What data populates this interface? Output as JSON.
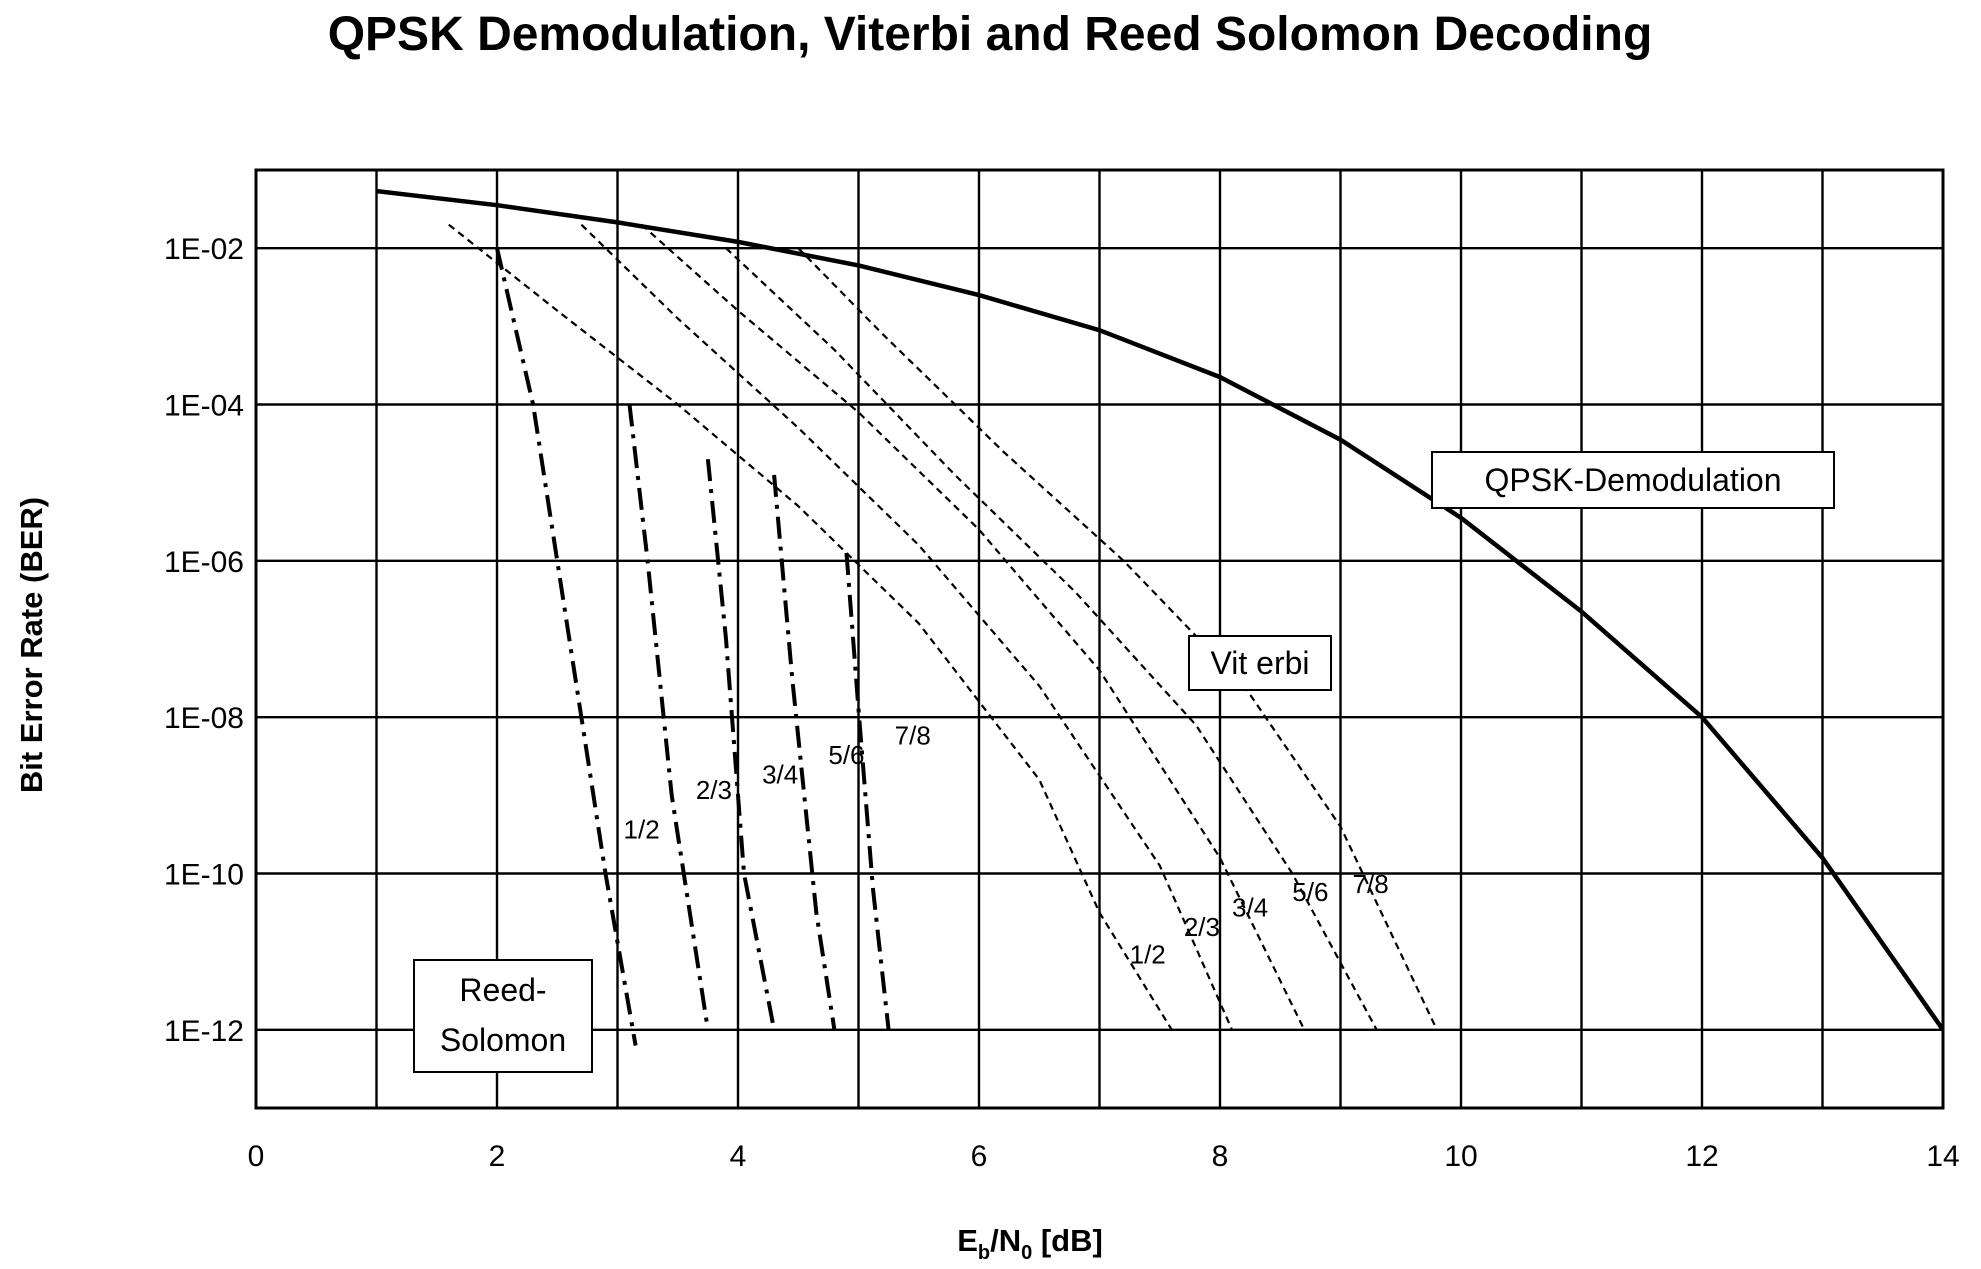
{
  "chart_data": {
    "type": "line",
    "title": "QPSK Demodulation, Viterbi and Reed Solomon Decoding",
    "xlabel_main": "E",
    "xlabel_sub_b": "b",
    "xlabel_slash": "/N",
    "xlabel_sub_0": "0",
    "xlabel_unit": " [dB]",
    "ylabel": "Bit Error Rate (BER)",
    "xlim": [
      0,
      14
    ],
    "ylim_exponent": [
      -13,
      -1
    ],
    "y_scale": "log",
    "grid": true,
    "x_ticks": [
      {
        "value": 0,
        "label": "0"
      },
      {
        "value": 2,
        "label": "2"
      },
      {
        "value": 4,
        "label": "4"
      },
      {
        "value": 6,
        "label": "6"
      },
      {
        "value": 8,
        "label": "8"
      },
      {
        "value": 10,
        "label": "10"
      },
      {
        "value": 12,
        "label": "12"
      },
      {
        "value": 14,
        "label": "14"
      }
    ],
    "y_ticks": [
      {
        "exp": -2,
        "label": "1E-02"
      },
      {
        "exp": -4,
        "label": "1E-04"
      },
      {
        "exp": -6,
        "label": "1E-06"
      },
      {
        "exp": -8,
        "label": "1E-08"
      },
      {
        "exp": -10,
        "label": "1E-10"
      },
      {
        "exp": -12,
        "label": "1E-12"
      }
    ],
    "annotations": {
      "qpsk": "QPSK-Demodulation",
      "viterbi": "Vit erbi",
      "reed_line1": "Reed-",
      "reed_line2": "Solomon"
    },
    "qpsk_series": {
      "name": "QPSK-Demodulation",
      "x": [
        1,
        2,
        3,
        4,
        5,
        6,
        7,
        8,
        9,
        10,
        11,
        12,
        13,
        14
      ],
      "log10_y": [
        -1.27,
        -1.45,
        -1.67,
        -1.92,
        -2.22,
        -2.6,
        -3.05,
        -3.65,
        -4.45,
        -5.45,
        -6.65,
        -8.0,
        -9.8,
        -12.0
      ]
    },
    "viterbi_series": [
      {
        "name": "1/2",
        "x": [
          1.6,
          2.5,
          3.5,
          4.5,
          5.5,
          6.5,
          7.0,
          7.6
        ],
        "log10_y": [
          -1.7,
          -2.8,
          -4.0,
          -5.3,
          -6.8,
          -8.8,
          -10.5,
          -12.0
        ]
      },
      {
        "name": "2/3",
        "x": [
          2.7,
          3.5,
          4.5,
          5.5,
          6.5,
          7.5,
          8.1
        ],
        "log10_y": [
          -1.7,
          -2.9,
          -4.3,
          -5.8,
          -7.6,
          -9.9,
          -12.0
        ]
      },
      {
        "name": "3/4",
        "x": [
          3.2,
          4.0,
          5.0,
          6.0,
          7.0,
          8.0,
          8.7
        ],
        "log10_y": [
          -1.7,
          -2.8,
          -4.1,
          -5.6,
          -7.4,
          -9.8,
          -12.0
        ]
      },
      {
        "name": "5/6",
        "x": [
          3.9,
          4.8,
          5.8,
          6.8,
          7.8,
          8.6,
          9.3
        ],
        "log10_y": [
          -2.0,
          -3.3,
          -4.9,
          -6.4,
          -8.1,
          -10.0,
          -12.0
        ]
      },
      {
        "name": "7/8",
        "x": [
          4.5,
          5.2,
          6.2,
          7.2,
          8.2,
          9.0,
          9.8
        ],
        "log10_y": [
          -2.0,
          -3.1,
          -4.6,
          -6.0,
          -7.6,
          -9.4,
          -12.0
        ]
      }
    ],
    "reed_solomon_series": [
      {
        "name": "1/2",
        "x": [
          2.0,
          2.3,
          2.6,
          2.9,
          3.15
        ],
        "log10_y": [
          -2.0,
          -4.0,
          -7.0,
          -10.0,
          -12.2
        ]
      },
      {
        "name": "2/3",
        "x": [
          3.1,
          3.25,
          3.45,
          3.75
        ],
        "log10_y": [
          -4.0,
          -6.0,
          -9.0,
          -12.0
        ]
      },
      {
        "name": "3/4",
        "x": [
          3.75,
          3.9,
          4.05,
          4.3
        ],
        "log10_y": [
          -4.7,
          -7.0,
          -10.0,
          -12.0
        ]
      },
      {
        "name": "5/6",
        "x": [
          4.3,
          4.45,
          4.65,
          4.8
        ],
        "log10_y": [
          -4.9,
          -7.5,
          -10.5,
          -12.0
        ]
      },
      {
        "name": "7/8",
        "x": [
          4.9,
          5.0,
          5.12,
          5.25
        ],
        "log10_y": [
          -5.9,
          -7.9,
          -10.2,
          -12.0
        ]
      }
    ]
  }
}
